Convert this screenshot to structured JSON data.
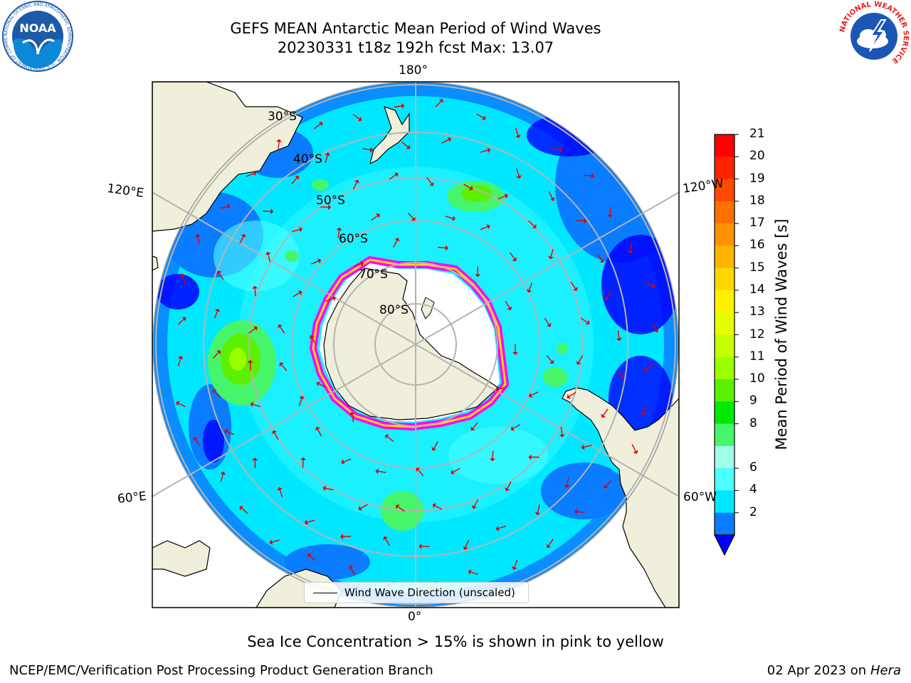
{
  "title_line1": "GEFS MEAN Antarctic Mean Period of Wind Waves",
  "title_line2": "20230331 t18z 192h fcst   Max: 13.07",
  "logos": {
    "noaa_text": "NOAA",
    "noaa_ring_text": "NATIONAL OCEANIC AND ATMOSPHERIC ADMINISTRATION · U.S. DEPARTMENT OF COMMERCE",
    "nws_ring_text": "NATIONAL WEATHER SERVICE"
  },
  "map": {
    "projection": "south-polar-stereographic",
    "lon_labels": {
      "top": "180°",
      "bottom": "0°",
      "upper_left": "120°E",
      "upper_right": "120°W",
      "lower_left": "60°E",
      "lower_right": "60°W"
    },
    "lat_labels": [
      "30°S",
      "40°S",
      "50°S",
      "60°S",
      "70°S",
      "80°S"
    ]
  },
  "legend_label": "Wind Wave Direction (unscaled)",
  "colorbar": {
    "label": "Mean Period of Wind Waves [s]",
    "ticks": [
      "21",
      "20",
      "19",
      "18",
      "17",
      "16",
      "15",
      "14",
      "13",
      "12",
      "11",
      "10",
      "9",
      "8",
      "6",
      "4",
      "2"
    ],
    "colors": [
      "#ff0000",
      "#ff2400",
      "#ff4a00",
      "#ff7000",
      "#ff9200",
      "#ffb400",
      "#ffd700",
      "#fff200",
      "#e6ff00",
      "#c6ff00",
      "#9aff00",
      "#5cf000",
      "#00e800",
      "#47f56a",
      "#9fffe9",
      "#4dffff",
      "#00e8ff",
      "#0a7cff"
    ],
    "extend_min_color": "#0000ff"
  },
  "sea_ice_note": "Sea Ice Concentration > 15% is shown in pink to yellow",
  "footer_left": "NCEP/EMC/Verification Post Processing Product Generation Branch",
  "footer_date": "02 Apr 2023 on ",
  "footer_host": "Hera"
}
